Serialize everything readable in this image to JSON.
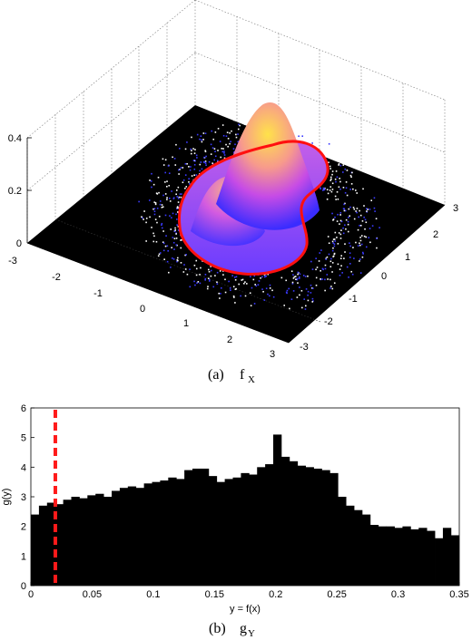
{
  "top_panel": {
    "caption_prefix": "(a)",
    "caption_symbol": "f",
    "caption_subscript": "X",
    "z_ticks": [
      "0",
      "0.2",
      "0.4"
    ],
    "x_ticks": [
      "-3",
      "-2",
      "-1",
      "0",
      "1",
      "2",
      "3"
    ],
    "y_ticks": [
      "-3",
      "-2",
      "-1",
      "0",
      "1",
      "2",
      "3"
    ]
  },
  "bottom_panel": {
    "caption_prefix": "(b)",
    "caption_symbol": "g",
    "caption_subscript": "Y",
    "ylabel": "g(y)",
    "xlabel": "y = f(x)",
    "x_ticks": [
      "0",
      "0.05",
      "0.1",
      "0.15",
      "0.2",
      "0.25",
      "0.3",
      "0.35"
    ],
    "y_ticks": [
      "0",
      "1",
      "2",
      "3",
      "4",
      "5",
      "6"
    ]
  },
  "colors": {
    "surface_low": "#1a1aff",
    "surface_mid": "#d64fe0",
    "surface_high": "#ffe24a",
    "contour": "#ff1010",
    "threshold_line": "#ff1a1a",
    "bars": "#000000"
  },
  "chart_data": [
    {
      "type": "surface",
      "x_range": [
        -3,
        3
      ],
      "y_range": [
        -3,
        3
      ],
      "z_range": [
        0,
        0.4
      ],
      "peaks": [
        {
          "x": 0.0,
          "y": 1.0,
          "height": 0.41
        },
        {
          "x": -0.8,
          "y": -0.4,
          "height": 0.23
        }
      ],
      "grid": true
    },
    {
      "type": "bar",
      "xlabel": "y = f(x)",
      "ylabel": "g(y)",
      "xlim": [
        0,
        0.35
      ],
      "ylim": [
        0,
        6
      ],
      "bin_start": 0,
      "bin_width": 0.0066,
      "values": [
        2.4,
        2.7,
        2.8,
        2.75,
        2.9,
        3.0,
        2.95,
        3.05,
        3.1,
        3.0,
        3.2,
        3.3,
        3.35,
        3.3,
        3.45,
        3.5,
        3.55,
        3.65,
        3.6,
        3.9,
        3.95,
        3.95,
        3.7,
        3.5,
        3.6,
        3.65,
        3.8,
        3.75,
        4.0,
        4.1,
        5.1,
        4.35,
        4.2,
        4.05,
        4.0,
        3.95,
        3.9,
        3.8,
        3.0,
        2.7,
        2.55,
        2.4,
        2.05,
        2.0,
        2.0,
        1.95,
        2.0,
        1.9,
        1.95,
        1.85,
        1.6,
        1.95,
        1.7
      ],
      "threshold_x": 0.02,
      "grid": false
    }
  ]
}
